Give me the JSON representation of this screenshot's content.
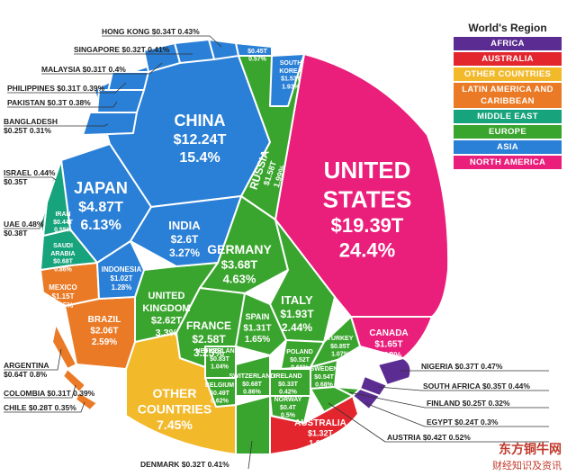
{
  "top_fragment": "",
  "chart_data": {
    "type": "voronoi-treemap",
    "title": "",
    "unit": "US$ trillions, share of world GDP",
    "legend": {
      "title": "World's Region",
      "placement": "top-right",
      "items": [
        {
          "label": "AFRICA",
          "color": "#5b2c91"
        },
        {
          "label": "AUSTRALIA",
          "color": "#e3262e"
        },
        {
          "label": "OTHER COUNTRIES",
          "color": "#f2b92a"
        },
        {
          "label": "LATIN AMERICA AND CARIBBEAN",
          "color": "#ea7a25"
        },
        {
          "label": "MIDDLE EAST",
          "color": "#17a37b"
        },
        {
          "label": "EUROPE",
          "color": "#3aa52e"
        },
        {
          "label": "ASIA",
          "color": "#2a7fd6"
        },
        {
          "label": "NORTH AMERICA",
          "color": "#ea1e7b"
        }
      ]
    },
    "countries": [
      {
        "name": "UNITED STATES",
        "value": "$19.39T",
        "share": "24.4%",
        "region": "NORTH AMERICA"
      },
      {
        "name": "CHINA",
        "value": "$12.24T",
        "share": "15.4%",
        "region": "ASIA"
      },
      {
        "name": "JAPAN",
        "value": "$4.87T",
        "share": "6.13%",
        "region": "ASIA"
      },
      {
        "name": "GERMANY",
        "value": "$3.68T",
        "share": "4.63%",
        "region": "EUROPE"
      },
      {
        "name": "INDIA",
        "value": "$2.6T",
        "share": "3.27%",
        "region": "ASIA"
      },
      {
        "name": "UNITED KINGDOM",
        "value": "$2.62T",
        "share": "3.3%",
        "region": "EUROPE"
      },
      {
        "name": "FRANCE",
        "value": "$2.58T",
        "share": "3.25%",
        "region": "EUROPE"
      },
      {
        "name": "BRAZIL",
        "value": "$2.06T",
        "share": "2.59%",
        "region": "LATIN AMERICA AND CARIBBEAN"
      },
      {
        "name": "ITALY",
        "value": "$1.93T",
        "share": "2.44%",
        "region": "EUROPE"
      },
      {
        "name": "CANADA",
        "value": "$1.65T",
        "share": "2.08%",
        "region": "NORTH AMERICA"
      },
      {
        "name": "RUSSIA",
        "value": "$1.58T",
        "share": "1.99%",
        "region": "EUROPE"
      },
      {
        "name": "SOUTH KOREA",
        "value": "$1.53T",
        "share": "1.93%",
        "region": "ASIA"
      },
      {
        "name": "AUSTRALIA",
        "value": "$1.32T",
        "share": "1.67%",
        "region": "AUSTRALIA"
      },
      {
        "name": "SPAIN",
        "value": "$1.31T",
        "share": "1.65%",
        "region": "EUROPE"
      },
      {
        "name": "MEXICO",
        "value": "$1.15T",
        "share": "1.45%",
        "region": "LATIN AMERICA AND CARIBBEAN"
      },
      {
        "name": "INDONESIA",
        "value": "$1.02T",
        "share": "1.28%",
        "region": "ASIA"
      },
      {
        "name": "TURKEY",
        "value": "$0.85T",
        "share": "1.07%",
        "region": "EUROPE"
      },
      {
        "name": "NETHERLANDS",
        "value": "$0.83T",
        "share": "1.04%",
        "region": "EUROPE"
      },
      {
        "name": "SAUDI ARABIA",
        "value": "$0.68T",
        "share": "0.86%",
        "region": "MIDDLE EAST"
      },
      {
        "name": "SWITZERLAND",
        "value": "$0.68T",
        "share": "0.86%",
        "region": "EUROPE"
      },
      {
        "name": "ARGENTINA",
        "value": "$0.64T",
        "share": "0.8%",
        "region": "LATIN AMERICA AND CARIBBEAN"
      },
      {
        "name": "SWEDEN",
        "value": "$0.54T",
        "share": "0.68%",
        "region": "EUROPE"
      },
      {
        "name": "POLAND",
        "value": "$0.52T",
        "share": "0.66%",
        "region": "EUROPE"
      },
      {
        "name": "BELGIUM",
        "value": "$0.49T",
        "share": "0.62%",
        "region": "EUROPE"
      },
      {
        "name": "THAILAND",
        "value": "$0.45T",
        "share": "0.57%",
        "region": "ASIA"
      },
      {
        "name": "IRAN",
        "value": "$0.44T",
        "share": "0.55%",
        "region": "MIDDLE EAST"
      },
      {
        "name": "AUSTRIA",
        "value": "$0.42T",
        "share": "0.52%",
        "region": "EUROPE"
      },
      {
        "name": "NORWAY",
        "value": "$0.4T",
        "share": "0.5%",
        "region": "EUROPE"
      },
      {
        "name": "UAE",
        "value": "$0.38T",
        "share": "0.48%",
        "region": "MIDDLE EAST"
      },
      {
        "name": "NIGERIA",
        "value": "$0.37T",
        "share": "0.47%",
        "region": "AFRICA"
      },
      {
        "name": "ISRAEL",
        "value": "$0.35T",
        "share": "0.44%",
        "region": "MIDDLE EAST"
      },
      {
        "name": "SOUTH AFRICA",
        "value": "$0.35T",
        "share": "0.44%",
        "region": "AFRICA"
      },
      {
        "name": "HONG KONG",
        "value": "$0.34T",
        "share": "0.43%",
        "region": "ASIA"
      },
      {
        "name": "IRELAND",
        "value": "$0.33T",
        "share": "0.42%",
        "region": "EUROPE"
      },
      {
        "name": "DENMARK",
        "value": "$0.32T",
        "share": "0.41%",
        "region": "EUROPE"
      },
      {
        "name": "SINGAPORE",
        "value": "$0.32T",
        "share": "0.41%",
        "region": "ASIA"
      },
      {
        "name": "MALAYSIA",
        "value": "$0.31T",
        "share": "0.4%",
        "region": "ASIA"
      },
      {
        "name": "PHILIPPINES",
        "value": "$0.31T",
        "share": "0.39%",
        "region": "ASIA"
      },
      {
        "name": "COLOMBIA",
        "value": "$0.31T",
        "share": "0.39%",
        "region": "LATIN AMERICA AND CARIBBEAN"
      },
      {
        "name": "PAKISTAN",
        "value": "$0.3T",
        "share": "0.38%",
        "region": "ASIA"
      },
      {
        "name": "CHILE",
        "value": "$0.28T",
        "share": "0.35%",
        "region": "LATIN AMERICA AND CARIBBEAN"
      },
      {
        "name": "BANGLADESH",
        "value": "$0.25T",
        "share": "0.31%",
        "region": "ASIA"
      },
      {
        "name": "FINLAND",
        "value": "$0.25T",
        "share": "0.32%",
        "region": "EUROPE"
      },
      {
        "name": "EGYPT",
        "value": "$0.24T",
        "share": "0.3%",
        "region": "AFRICA"
      },
      {
        "name": "OTHER COUNTRIES",
        "value": "",
        "share": "7.45%",
        "region": "OTHER COUNTRIES"
      }
    ]
  },
  "watermark": {
    "line1": "东方铜牛网",
    "line2": "财经知识及资讯"
  }
}
